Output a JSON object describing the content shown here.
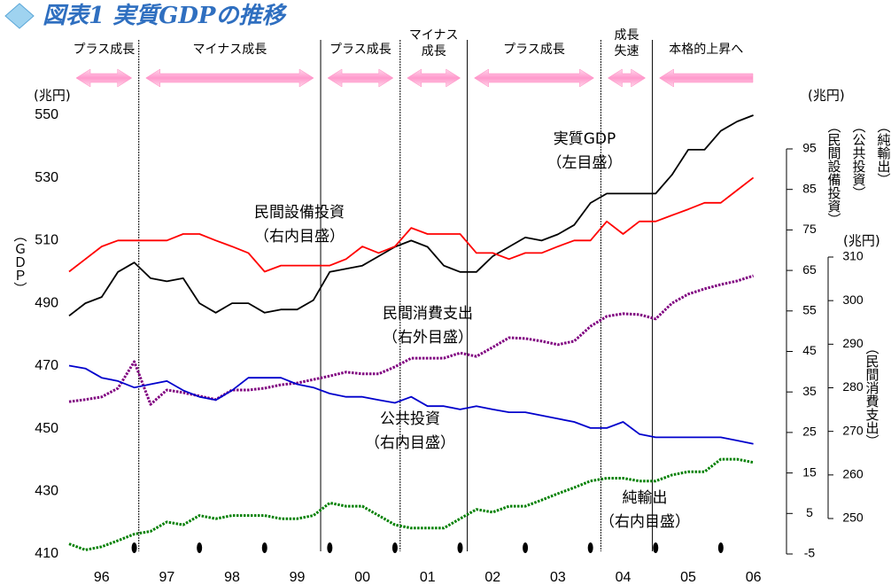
{
  "chart_data": {
    "type": "line",
    "title": "図表1 実質GDPの推移",
    "x": [
      1996,
      1996.25,
      1996.5,
      1996.75,
      1997,
      1997.25,
      1997.5,
      1997.75,
      1998,
      1998.25,
      1998.5,
      1998.75,
      1999,
      1999.25,
      1999.5,
      1999.75,
      2000,
      2000.25,
      2000.5,
      2000.75,
      2001,
      2001.25,
      2001.5,
      2001.75,
      2002,
      2002.25,
      2002.5,
      2002.75,
      2003,
      2003.25,
      2003.5,
      2003.75,
      2004,
      2004.25,
      2004.5,
      2004.75,
      2005,
      2005.25,
      2005.5,
      2005.75,
      2006,
      2006.25,
      2006.5
    ],
    "xlim": [
      1996,
      2006.6
    ],
    "xticks": [
      {
        "value": 1996.5,
        "label": "96"
      },
      {
        "value": 1997.5,
        "label": "97"
      },
      {
        "value": 1998.5,
        "label": "98"
      },
      {
        "value": 1999.5,
        "label": "99"
      },
      {
        "value": 2000.5,
        "label": "00"
      },
      {
        "value": 2001.5,
        "label": "01"
      },
      {
        "value": 2002.5,
        "label": "02"
      },
      {
        "value": 2003.5,
        "label": "03"
      },
      {
        "value": 2004.5,
        "label": "04"
      },
      {
        "value": 2005.5,
        "label": "05"
      },
      {
        "value": 2006.5,
        "label": "06"
      }
    ],
    "xminorticks": [
      1997,
      1998,
      1999,
      2000,
      2001,
      2002,
      2003,
      2004,
      2005,
      2006
    ],
    "ylim": [
      410,
      550
    ],
    "yticks": [
      410,
      430,
      450,
      470,
      490,
      510,
      530,
      550
    ],
    "y_unit": "(兆円)",
    "y_label": "（ＧＤＰ）",
    "y2lim": [
      -5,
      95
    ],
    "y2ticks": [
      -5,
      5,
      15,
      25,
      35,
      45,
      55,
      65,
      75,
      85,
      95
    ],
    "y2_unit": "(兆円)",
    "y2_labels": [
      "（民間設備投資）",
      "（公共投資）",
      "（純輸出）"
    ],
    "y3lim": [
      250,
      310
    ],
    "y3ticks": [
      250,
      260,
      270,
      280,
      290,
      300,
      310
    ],
    "y3_unit": "(兆円)",
    "y3_label": "（民間消費支出）",
    "series": [
      {
        "name": "実質GDP",
        "color": "#000000",
        "axis": "y",
        "style": "solid",
        "values": [
          486,
          490,
          492,
          500,
          503,
          498,
          497,
          498,
          490,
          487,
          490,
          490,
          487,
          488,
          488,
          491,
          500,
          501,
          502,
          505,
          508,
          510,
          508,
          502,
          500,
          500,
          505,
          508,
          511,
          510,
          512,
          515,
          522,
          525,
          525,
          525,
          525,
          531,
          539,
          539,
          545,
          548,
          550
        ]
      },
      {
        "name": "民間設備投資",
        "color": "#ff0000",
        "axis": "y2",
        "style": "solid",
        "values": [
          64.7,
          67.8,
          70.9,
          72.4,
          72.4,
          72.4,
          72.4,
          74.0,
          74.0,
          72.4,
          70.9,
          69.3,
          64.7,
          66.2,
          66.2,
          66.2,
          66.2,
          67.8,
          70.9,
          69.3,
          70.9,
          75.5,
          74.0,
          74.0,
          74.0,
          69.3,
          69.3,
          67.8,
          69.3,
          69.3,
          70.9,
          72.4,
          72.4,
          77.1,
          74.0,
          77.1,
          77.1,
          78.6,
          80.1,
          81.7,
          81.7,
          84.8,
          87.9
        ]
      },
      {
        "name": "民間消費支出",
        "color": "#800080",
        "axis": "y3",
        "style": "dotted",
        "values": [
          276.8,
          277.3,
          277.9,
          279.9,
          286.0,
          276.2,
          279.5,
          278.9,
          278.1,
          277.3,
          279.5,
          279.5,
          279.9,
          280.7,
          281.1,
          281.9,
          282.7,
          283.6,
          283.2,
          283.2,
          284.8,
          286.8,
          286.8,
          286.8,
          288.0,
          287.2,
          289.3,
          291.5,
          291.3,
          290.7,
          289.9,
          290.7,
          294.1,
          296.4,
          297.0,
          296.8,
          295.8,
          299.4,
          301.5,
          302.7,
          303.7,
          304.5,
          305.7
        ]
      },
      {
        "name": "公共投資",
        "color": "#0000cc",
        "axis": "y2",
        "style": "solid",
        "values": [
          41.5,
          40.8,
          38.5,
          37.7,
          36.1,
          36.9,
          37.7,
          35.4,
          33.8,
          33.0,
          35.4,
          38.5,
          38.5,
          38.5,
          36.9,
          36.1,
          34.6,
          33.8,
          33.8,
          33.0,
          32.3,
          33.8,
          31.5,
          31.5,
          30.7,
          31.5,
          30.7,
          30.0,
          30.0,
          29.2,
          28.4,
          27.6,
          26.1,
          26.1,
          27.6,
          24.6,
          23.8,
          23.8,
          23.8,
          23.8,
          23.8,
          23.0,
          22.2
        ]
      },
      {
        "name": "純輸出",
        "color": "#008000",
        "axis": "y2",
        "style": "dotted",
        "values": [
          -2.5,
          -4.0,
          -3.2,
          -1.7,
          -0.1,
          0.6,
          2.9,
          2.2,
          4.5,
          3.7,
          4.5,
          4.5,
          4.5,
          3.7,
          3.7,
          4.5,
          7.6,
          6.8,
          6.8,
          4.5,
          2.2,
          1.4,
          1.4,
          1.4,
          3.7,
          6.0,
          5.3,
          6.8,
          6.8,
          8.3,
          9.9,
          11.4,
          13.0,
          13.7,
          13.7,
          13.0,
          13.0,
          14.5,
          15.3,
          15.3,
          18.4,
          18.4,
          17.6
        ]
      }
    ],
    "annotations": [
      {
        "lines": [
          "実質GDP",
          "（左目盛）"
        ]
      },
      {
        "lines": [
          "民間設備投資",
          "（右内目盛）"
        ]
      },
      {
        "lines": [
          "民間消費支出",
          "（右外目盛）"
        ]
      },
      {
        "lines": [
          "公共投資",
          "（右内目盛）"
        ]
      },
      {
        "lines": [
          "純輸出",
          "（右内目盛）"
        ]
      }
    ],
    "phase_boundaries": [
      1997.07,
      1999.86,
      2001.08,
      2002.11,
      2004.16,
      2004.95
    ],
    "phases": [
      {
        "lines": [
          "プラス成長"
        ],
        "arrow": "both"
      },
      {
        "lines": [
          "マイナス成長"
        ],
        "arrow": "both"
      },
      {
        "lines": [
          "プラス成長"
        ],
        "arrow": "both"
      },
      {
        "lines": [
          "マイナス",
          "成長"
        ],
        "arrow": "both"
      },
      {
        "lines": [
          "プラス成長"
        ],
        "arrow": "both"
      },
      {
        "lines": [
          "成長",
          "失速"
        ],
        "arrow": "both"
      },
      {
        "lines": [
          "本格的上昇へ"
        ],
        "arrow": "left"
      }
    ]
  }
}
